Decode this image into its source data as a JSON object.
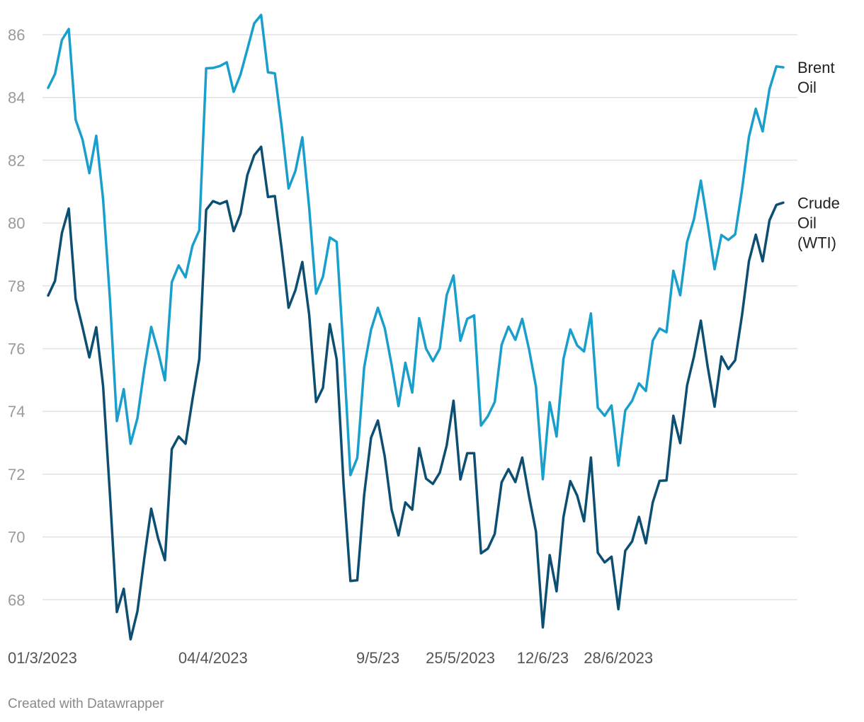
{
  "chart_data": {
    "type": "line",
    "title": "",
    "xlabel": "",
    "ylabel": "",
    "ylim": [
      67,
      86.7
    ],
    "y_ticks": [
      68,
      70,
      72,
      74,
      76,
      78,
      80,
      82,
      84,
      86
    ],
    "x_tick_labels": [
      {
        "label": "01/3/2023",
        "index": 0
      },
      {
        "label": "04/4/2023",
        "index": 24
      },
      {
        "label": "9/5/23",
        "index": 48
      },
      {
        "label": "25/5/2023",
        "index": 60
      },
      {
        "label": "12/6/23",
        "index": 72
      },
      {
        "label": "28/6/2023",
        "index": 83
      }
    ],
    "grid": true,
    "legend": "direct-labels-right",
    "series": [
      {
        "name": "Brent Oil",
        "label_lines": [
          "Brent",
          "Oil"
        ],
        "color": "#1a9fcd",
        "values": [
          84.31,
          84.75,
          85.83,
          86.18,
          83.29,
          82.66,
          81.59,
          82.78,
          80.75,
          77.55,
          73.69,
          74.71,
          72.97,
          73.79,
          75.35,
          76.69,
          75.91,
          74.99,
          78.12,
          78.65,
          78.27,
          79.27,
          79.77,
          84.93,
          84.94,
          85.0,
          85.12,
          84.18,
          84.73,
          85.54,
          86.36,
          86.63,
          84.8,
          84.77,
          83.06,
          81.1,
          81.66,
          82.73,
          80.48,
          77.75,
          78.29,
          79.54,
          79.4,
          75.9,
          71.97,
          72.52,
          75.4,
          76.6,
          77.3,
          76.65,
          75.48,
          74.17,
          75.55,
          74.6,
          76.97,
          76.0,
          75.6,
          76.0,
          77.7,
          78.33,
          76.25,
          76.95,
          77.06,
          73.55,
          73.85,
          74.3,
          76.12,
          76.7,
          76.28,
          76.95,
          75.97,
          74.79,
          71.84,
          74.29,
          73.2,
          75.67,
          76.61,
          76.1,
          75.91,
          77.12,
          74.12,
          73.86,
          74.19,
          72.27,
          74.03,
          74.34,
          74.89,
          74.65,
          76.25,
          76.64,
          76.52,
          78.48,
          77.7,
          79.4,
          80.12,
          81.35,
          79.98,
          78.53,
          79.62,
          79.46,
          79.64,
          81.07,
          82.74,
          83.64,
          82.92,
          84.27,
          84.99,
          84.96
        ]
      },
      {
        "name": "Crude Oil (WTI)",
        "label_lines": [
          "Crude",
          "Oil",
          "(WTI)"
        ],
        "color": "#0d4f73",
        "values": [
          77.69,
          78.16,
          79.68,
          80.46,
          77.58,
          76.68,
          75.72,
          76.68,
          74.8,
          71.33,
          67.61,
          68.35,
          66.74,
          67.64,
          69.33,
          70.9,
          69.96,
          69.26,
          72.8,
          73.2,
          72.97,
          74.37,
          75.67,
          80.42,
          80.7,
          80.61,
          80.7,
          79.74,
          80.29,
          81.53,
          82.16,
          82.43,
          80.83,
          80.86,
          79.16,
          77.3,
          77.87,
          78.76,
          77.07,
          74.3,
          74.75,
          76.78,
          75.66,
          71.69,
          68.6,
          68.62,
          71.34,
          73.16,
          73.71,
          72.56,
          70.87,
          70.05,
          71.1,
          70.87,
          72.83,
          71.86,
          71.69,
          72.05,
          72.91,
          74.34,
          71.83,
          72.67,
          72.67,
          69.48,
          69.63,
          70.1,
          71.74,
          72.16,
          71.75,
          72.53,
          71.29,
          70.17,
          67.12,
          69.42,
          68.27,
          70.63,
          71.78,
          71.32,
          70.5,
          72.53,
          69.5,
          69.19,
          69.37,
          67.7,
          69.56,
          69.86,
          70.64,
          69.8,
          71.1,
          71.79,
          71.8,
          73.86,
          72.99,
          74.83,
          75.75,
          76.89,
          75.42,
          74.15,
          75.75,
          75.35,
          75.63,
          77.07,
          78.78,
          79.63,
          78.78,
          80.09,
          80.58,
          80.65
        ]
      }
    ]
  },
  "footer": {
    "credit": "Created with Datawrapper"
  }
}
